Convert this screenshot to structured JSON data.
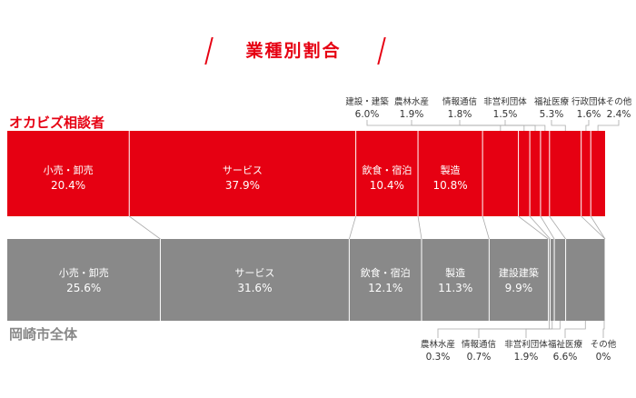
{
  "title": "業種別割合",
  "colors": {
    "accent": "#e60012",
    "gray": "#898989",
    "divider": "#ffffff",
    "connector": "#aaaaaa"
  },
  "chart_data": {
    "type": "bar",
    "orientation": "horizontal-stacked-100",
    "series": [
      {
        "name": "オカビズ相談者",
        "segments": [
          {
            "category": "小売・卸売",
            "value": 20.4
          },
          {
            "category": "サービス",
            "value": 37.9
          },
          {
            "category": "飲食・宿泊",
            "value": 10.4
          },
          {
            "category": "製造",
            "value": 10.8
          },
          {
            "category": "建設・建築",
            "value": 6.0
          },
          {
            "category": "農林水産",
            "value": 1.9
          },
          {
            "category": "情報通信",
            "value": 1.8
          },
          {
            "category": "非営利団体",
            "value": 1.5
          },
          {
            "category": "福祉医療",
            "value": 5.3
          },
          {
            "category": "行政団体",
            "value": 1.6
          },
          {
            "category": "その他",
            "value": 2.4
          }
        ]
      },
      {
        "name": "岡崎市全体",
        "segments": [
          {
            "category": "小売・卸売",
            "value": 25.6
          },
          {
            "category": "サービス",
            "value": 31.6
          },
          {
            "category": "飲食・宿泊",
            "value": 12.1
          },
          {
            "category": "製造",
            "value": 11.3
          },
          {
            "category": "建設建築",
            "value": 9.9
          },
          {
            "category": "農林水産",
            "value": 0.3
          },
          {
            "category": "情報通信",
            "value": 0.7
          },
          {
            "category": "非営利団体",
            "value": 1.9
          },
          {
            "category": "福祉医療",
            "value": 6.6
          },
          {
            "category": "その他",
            "value": 0
          }
        ]
      }
    ],
    "top_inside_labels": [
      {
        "name": "小売・卸売",
        "value": "20.4%"
      },
      {
        "name": "サービス",
        "value": "37.9%"
      },
      {
        "name": "飲食・宿泊",
        "value": "10.4%"
      },
      {
        "name": "製造",
        "value": "10.8%"
      }
    ],
    "top_callouts": [
      {
        "name": "建設・建築",
        "value": "6.0%"
      },
      {
        "name": "農林水産",
        "value": "1.9%"
      },
      {
        "name": "情報通信",
        "value": "1.8%"
      },
      {
        "name": "非営利団体",
        "value": "1.5%"
      },
      {
        "name": "福祉医療",
        "value": "5.3%"
      },
      {
        "name": "行政団体",
        "value": "1.6%"
      },
      {
        "name": "その他",
        "value": "2.4%"
      }
    ],
    "bottom_inside_labels": [
      {
        "name": "小売・卸売",
        "value": "25.6%"
      },
      {
        "name": "サービス",
        "value": "31.6%"
      },
      {
        "name": "飲食・宿泊",
        "value": "12.1%"
      },
      {
        "name": "製造",
        "value": "11.3%"
      },
      {
        "name": "建設建築",
        "value": "9.9%"
      }
    ],
    "bottom_callouts": [
      {
        "name": "農林水産",
        "value": "0.3%"
      },
      {
        "name": "情報通信",
        "value": "0.7%"
      },
      {
        "name": "非営利団体",
        "value": "1.9%"
      },
      {
        "name": "福祉医療",
        "value": "6.6%"
      },
      {
        "name": "その他",
        "value": "0%"
      }
    ]
  }
}
